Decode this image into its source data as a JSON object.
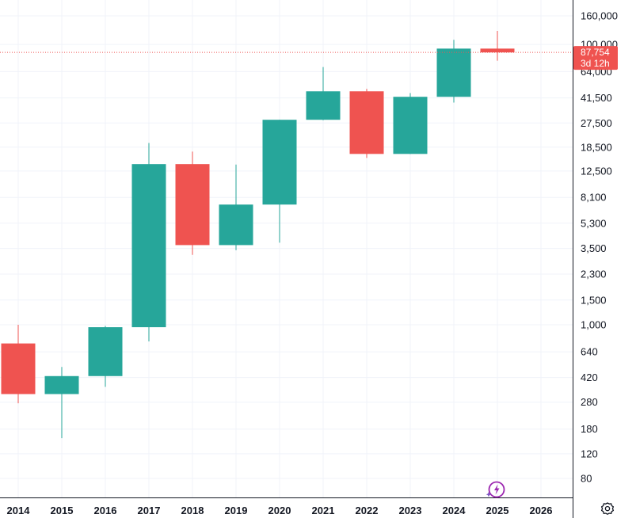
{
  "chart_data": {
    "type": "candlestick",
    "scale": "log",
    "grid": true,
    "x": [
      "2014",
      "2015",
      "2016",
      "2017",
      "2018",
      "2019",
      "2020",
      "2021",
      "2022",
      "2023",
      "2024",
      "2025",
      "2026"
    ],
    "y_ticks": [
      "160,000",
      "100,000",
      "64,000",
      "41,500",
      "27,500",
      "18,500",
      "12,500",
      "8,100",
      "5,300",
      "3,500",
      "2,300",
      "1,500",
      "1,000",
      "640",
      "420",
      "280",
      "180",
      "120",
      "80"
    ],
    "candles": [
      {
        "year": "2014",
        "open": 735,
        "high": 1000,
        "low": 275,
        "close": 320
      },
      {
        "year": "2015",
        "open": 320,
        "high": 500,
        "low": 155,
        "close": 430
      },
      {
        "year": "2016",
        "open": 430,
        "high": 980,
        "low": 360,
        "close": 960
      },
      {
        "year": "2017",
        "open": 960,
        "high": 19800,
        "low": 760,
        "close": 14000
      },
      {
        "year": "2018",
        "open": 14000,
        "high": 17200,
        "low": 3150,
        "close": 3700
      },
      {
        "year": "2019",
        "open": 3700,
        "high": 13900,
        "low": 3400,
        "close": 7200
      },
      {
        "year": "2020",
        "open": 7200,
        "high": 29000,
        "low": 3850,
        "close": 29000
      },
      {
        "year": "2021",
        "open": 29000,
        "high": 69000,
        "low": 28800,
        "close": 46300
      },
      {
        "year": "2022",
        "open": 46300,
        "high": 48200,
        "low": 15500,
        "close": 16550
      },
      {
        "year": "2023",
        "open": 16550,
        "high": 45000,
        "low": 16500,
        "close": 42300
      },
      {
        "year": "2024",
        "open": 42300,
        "high": 108000,
        "low": 38500,
        "close": 93400
      },
      {
        "year": "2025",
        "open": 93400,
        "high": 125000,
        "low": 76600,
        "close": 87754
      }
    ],
    "last_price": {
      "value": 87754,
      "label": "87,754",
      "countdown": "3d 12h"
    },
    "colors": {
      "up": "#26a69a",
      "down": "#ef5350",
      "grid": "#f0f3fa",
      "axis_text": "#131722",
      "price_line": "#ef5350"
    }
  },
  "icons": {
    "settings": "gear-icon",
    "ai_assistant": "sparkle-lightning-icon"
  }
}
